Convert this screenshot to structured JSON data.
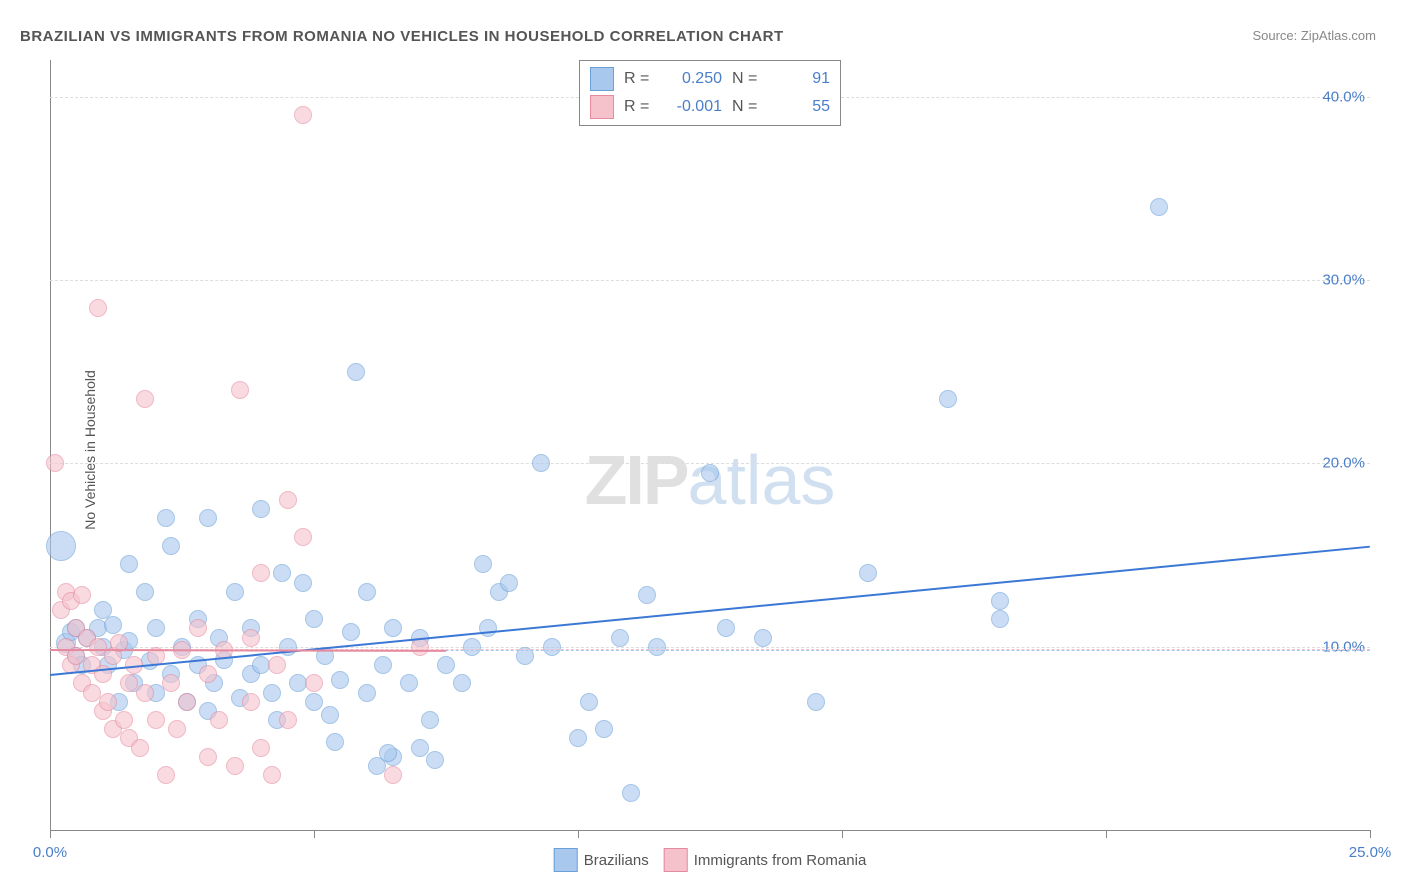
{
  "title": "BRAZILIAN VS IMMIGRANTS FROM ROMANIA NO VEHICLES IN HOUSEHOLD CORRELATION CHART",
  "source_label": "Source: ",
  "source_name": "ZipAtlas.com",
  "ylabel": "No Vehicles in Household",
  "watermark_z": "ZIP",
  "watermark_rest": "atlas",
  "chart": {
    "type": "scatter",
    "xlim": [
      0,
      25
    ],
    "ylim": [
      0,
      42
    ],
    "x_ticks": [
      0,
      5,
      10,
      15,
      20,
      25
    ],
    "x_tick_labels": [
      "0.0%",
      "",
      "",
      "",
      "",
      "25.0%"
    ],
    "y_ticks": [
      10,
      20,
      30,
      40
    ],
    "y_tick_labels": [
      "10.0%",
      "20.0%",
      "30.0%",
      "40.0%"
    ],
    "grid_color": "#dddddd",
    "axis_color": "#888888",
    "background": "#ffffff",
    "series": [
      {
        "name": "Brazilians",
        "color_fill": "#a8c8ee",
        "color_stroke": "#6b9fd8",
        "r_label": "R =",
        "r_value": "0.250",
        "n_label": "N =",
        "n_value": "91",
        "trend": {
          "x1": 0,
          "y1": 8.5,
          "x2": 25,
          "y2": 15.5,
          "color": "#3b78d6",
          "width": 2
        },
        "trend_dashed": {
          "y": 9.8,
          "color": "#a8c8ee"
        },
        "points": [
          {
            "x": 0.2,
            "y": 15.5,
            "r": 14
          },
          {
            "x": 0.3,
            "y": 10.2,
            "r": 9
          },
          {
            "x": 0.4,
            "y": 10.8,
            "r": 8
          },
          {
            "x": 0.5,
            "y": 9.5,
            "r": 8
          },
          {
            "x": 0.5,
            "y": 11,
            "r": 8
          },
          {
            "x": 0.6,
            "y": 9,
            "r": 8
          },
          {
            "x": 0.7,
            "y": 10.5,
            "r": 8
          },
          {
            "x": 0.9,
            "y": 11,
            "r": 8
          },
          {
            "x": 1.0,
            "y": 12,
            "r": 8
          },
          {
            "x": 1.0,
            "y": 10,
            "r": 8
          },
          {
            "x": 1.1,
            "y": 9,
            "r": 8
          },
          {
            "x": 1.2,
            "y": 11.2,
            "r": 8
          },
          {
            "x": 1.3,
            "y": 7,
            "r": 8
          },
          {
            "x": 1.4,
            "y": 9.8,
            "r": 8
          },
          {
            "x": 1.5,
            "y": 10.3,
            "r": 8
          },
          {
            "x": 1.5,
            "y": 14.5,
            "r": 8
          },
          {
            "x": 1.6,
            "y": 8,
            "r": 8
          },
          {
            "x": 1.8,
            "y": 13,
            "r": 8
          },
          {
            "x": 1.9,
            "y": 9.2,
            "r": 8
          },
          {
            "x": 2.0,
            "y": 7.5,
            "r": 8
          },
          {
            "x": 2.0,
            "y": 11,
            "r": 8
          },
          {
            "x": 2.2,
            "y": 17,
            "r": 8
          },
          {
            "x": 2.3,
            "y": 8.5,
            "r": 8
          },
          {
            "x": 2.3,
            "y": 15.5,
            "r": 8
          },
          {
            "x": 2.5,
            "y": 10,
            "r": 8
          },
          {
            "x": 2.6,
            "y": 7,
            "r": 8
          },
          {
            "x": 2.8,
            "y": 9,
            "r": 8
          },
          {
            "x": 2.8,
            "y": 11.5,
            "r": 8
          },
          {
            "x": 3.0,
            "y": 6.5,
            "r": 8
          },
          {
            "x": 3.0,
            "y": 17,
            "r": 8
          },
          {
            "x": 3.1,
            "y": 8,
            "r": 8
          },
          {
            "x": 3.2,
            "y": 10.5,
            "r": 8
          },
          {
            "x": 3.3,
            "y": 9.3,
            "r": 8
          },
          {
            "x": 3.5,
            "y": 13,
            "r": 8
          },
          {
            "x": 3.6,
            "y": 7.2,
            "r": 8
          },
          {
            "x": 3.8,
            "y": 8.5,
            "r": 8
          },
          {
            "x": 3.8,
            "y": 11,
            "r": 8
          },
          {
            "x": 4.0,
            "y": 17.5,
            "r": 8
          },
          {
            "x": 4.0,
            "y": 9,
            "r": 8
          },
          {
            "x": 4.2,
            "y": 7.5,
            "r": 8
          },
          {
            "x": 4.3,
            "y": 6,
            "r": 8
          },
          {
            "x": 4.4,
            "y": 14,
            "r": 8
          },
          {
            "x": 4.5,
            "y": 10,
            "r": 8
          },
          {
            "x": 4.7,
            "y": 8,
            "r": 8
          },
          {
            "x": 4.8,
            "y": 13.5,
            "r": 8
          },
          {
            "x": 5.0,
            "y": 7,
            "r": 8
          },
          {
            "x": 5.0,
            "y": 11.5,
            "r": 8
          },
          {
            "x": 5.2,
            "y": 9.5,
            "r": 8
          },
          {
            "x": 5.3,
            "y": 6.3,
            "r": 8
          },
          {
            "x": 5.5,
            "y": 8.2,
            "r": 8
          },
          {
            "x": 5.7,
            "y": 10.8,
            "r": 8
          },
          {
            "x": 5.8,
            "y": 25,
            "r": 8
          },
          {
            "x": 6.0,
            "y": 7.5,
            "r": 8
          },
          {
            "x": 6.0,
            "y": 13,
            "r": 8
          },
          {
            "x": 6.2,
            "y": 3.5,
            "r": 8
          },
          {
            "x": 6.3,
            "y": 9,
            "r": 8
          },
          {
            "x": 6.5,
            "y": 11,
            "r": 8
          },
          {
            "x": 6.5,
            "y": 4,
            "r": 8
          },
          {
            "x": 6.8,
            "y": 8,
            "r": 8
          },
          {
            "x": 7.0,
            "y": 4.5,
            "r": 8
          },
          {
            "x": 7.0,
            "y": 10.5,
            "r": 8
          },
          {
            "x": 7.2,
            "y": 6,
            "r": 8
          },
          {
            "x": 7.3,
            "y": 3.8,
            "r": 8
          },
          {
            "x": 7.5,
            "y": 9,
            "r": 8
          },
          {
            "x": 7.8,
            "y": 8,
            "r": 8
          },
          {
            "x": 8.0,
            "y": 10,
            "r": 8
          },
          {
            "x": 8.2,
            "y": 14.5,
            "r": 8
          },
          {
            "x": 8.3,
            "y": 11,
            "r": 8
          },
          {
            "x": 8.5,
            "y": 13,
            "r": 8
          },
          {
            "x": 8.7,
            "y": 13.5,
            "r": 8
          },
          {
            "x": 9.0,
            "y": 9.5,
            "r": 8
          },
          {
            "x": 9.3,
            "y": 20,
            "r": 8
          },
          {
            "x": 9.5,
            "y": 10,
            "r": 8
          },
          {
            "x": 10.0,
            "y": 5,
            "r": 8
          },
          {
            "x": 10.2,
            "y": 7,
            "r": 8
          },
          {
            "x": 10.5,
            "y": 5.5,
            "r": 8
          },
          {
            "x": 10.8,
            "y": 10.5,
            "r": 8
          },
          {
            "x": 11.0,
            "y": 2,
            "r": 8
          },
          {
            "x": 11.3,
            "y": 12.8,
            "r": 8
          },
          {
            "x": 11.5,
            "y": 10,
            "r": 8
          },
          {
            "x": 12.5,
            "y": 19.5,
            "r": 8
          },
          {
            "x": 12.8,
            "y": 11,
            "r": 8
          },
          {
            "x": 13.5,
            "y": 10.5,
            "r": 8
          },
          {
            "x": 14.5,
            "y": 7,
            "r": 8
          },
          {
            "x": 15.5,
            "y": 14,
            "r": 8
          },
          {
            "x": 17.0,
            "y": 23.5,
            "r": 8
          },
          {
            "x": 18.0,
            "y": 11.5,
            "r": 8
          },
          {
            "x": 18.0,
            "y": 12.5,
            "r": 8
          },
          {
            "x": 21.0,
            "y": 34,
            "r": 8
          },
          {
            "x": 6.4,
            "y": 4.2,
            "r": 8
          },
          {
            "x": 5.4,
            "y": 4.8,
            "r": 8
          }
        ]
      },
      {
        "name": "Immigrants from Romania",
        "color_fill": "#f5c2cc",
        "color_stroke": "#e68aa0",
        "r_label": "R =",
        "r_value": "-0.001",
        "n_label": "N =",
        "n_value": "55",
        "trend": {
          "x1": 0,
          "y1": 9.9,
          "x2": 7.5,
          "y2": 9.85,
          "color": "#e68aa0",
          "width": 2
        },
        "trend_dashed": {
          "y": 9.9,
          "color": "#f5c2cc"
        },
        "points": [
          {
            "x": 0.1,
            "y": 20,
            "r": 8
          },
          {
            "x": 0.2,
            "y": 12,
            "r": 8
          },
          {
            "x": 0.3,
            "y": 13,
            "r": 8
          },
          {
            "x": 0.3,
            "y": 10,
            "r": 8
          },
          {
            "x": 0.4,
            "y": 12.5,
            "r": 8
          },
          {
            "x": 0.4,
            "y": 9,
            "r": 8
          },
          {
            "x": 0.5,
            "y": 11,
            "r": 8
          },
          {
            "x": 0.5,
            "y": 9.5,
            "r": 8
          },
          {
            "x": 0.6,
            "y": 12.8,
            "r": 8
          },
          {
            "x": 0.6,
            "y": 8,
            "r": 8
          },
          {
            "x": 0.7,
            "y": 10.5,
            "r": 8
          },
          {
            "x": 0.8,
            "y": 9,
            "r": 8
          },
          {
            "x": 0.8,
            "y": 7.5,
            "r": 8
          },
          {
            "x": 0.9,
            "y": 10,
            "r": 8
          },
          {
            "x": 0.9,
            "y": 28.5,
            "r": 8
          },
          {
            "x": 1.0,
            "y": 6.5,
            "r": 8
          },
          {
            "x": 1.0,
            "y": 8.5,
            "r": 8
          },
          {
            "x": 1.1,
            "y": 7,
            "r": 8
          },
          {
            "x": 1.2,
            "y": 9.5,
            "r": 8
          },
          {
            "x": 1.2,
            "y": 5.5,
            "r": 8
          },
          {
            "x": 1.3,
            "y": 10.2,
            "r": 8
          },
          {
            "x": 1.4,
            "y": 6,
            "r": 8
          },
          {
            "x": 1.5,
            "y": 8,
            "r": 8
          },
          {
            "x": 1.5,
            "y": 5,
            "r": 8
          },
          {
            "x": 1.6,
            "y": 9,
            "r": 8
          },
          {
            "x": 1.7,
            "y": 4.5,
            "r": 8
          },
          {
            "x": 1.8,
            "y": 7.5,
            "r": 8
          },
          {
            "x": 1.8,
            "y": 23.5,
            "r": 8
          },
          {
            "x": 2.0,
            "y": 6,
            "r": 8
          },
          {
            "x": 2.0,
            "y": 9.5,
            "r": 8
          },
          {
            "x": 2.2,
            "y": 3,
            "r": 8
          },
          {
            "x": 2.3,
            "y": 8,
            "r": 8
          },
          {
            "x": 2.4,
            "y": 5.5,
            "r": 8
          },
          {
            "x": 2.5,
            "y": 9.8,
            "r": 8
          },
          {
            "x": 2.6,
            "y": 7,
            "r": 8
          },
          {
            "x": 2.8,
            "y": 11,
            "r": 8
          },
          {
            "x": 3.0,
            "y": 4,
            "r": 8
          },
          {
            "x": 3.0,
            "y": 8.5,
            "r": 8
          },
          {
            "x": 3.2,
            "y": 6,
            "r": 8
          },
          {
            "x": 3.3,
            "y": 9.8,
            "r": 8
          },
          {
            "x": 3.5,
            "y": 3.5,
            "r": 8
          },
          {
            "x": 3.6,
            "y": 24,
            "r": 8
          },
          {
            "x": 3.8,
            "y": 7,
            "r": 8
          },
          {
            "x": 3.8,
            "y": 10.5,
            "r": 8
          },
          {
            "x": 4.0,
            "y": 4.5,
            "r": 8
          },
          {
            "x": 4.0,
            "y": 14,
            "r": 8
          },
          {
            "x": 4.2,
            "y": 3,
            "r": 8
          },
          {
            "x": 4.3,
            "y": 9,
            "r": 8
          },
          {
            "x": 4.5,
            "y": 18,
            "r": 8
          },
          {
            "x": 4.5,
            "y": 6,
            "r": 8
          },
          {
            "x": 4.8,
            "y": 16,
            "r": 8
          },
          {
            "x": 4.8,
            "y": 39,
            "r": 8
          },
          {
            "x": 5.0,
            "y": 8,
            "r": 8
          },
          {
            "x": 6.5,
            "y": 3,
            "r": 8
          },
          {
            "x": 7.0,
            "y": 10,
            "r": 8
          }
        ]
      }
    ],
    "legend_bottom": [
      {
        "label": "Brazilians",
        "fill": "#a8c8ee",
        "stroke": "#6b9fd8"
      },
      {
        "label": "Immigrants from Romania",
        "fill": "#f5c2cc",
        "stroke": "#e68aa0"
      }
    ]
  }
}
